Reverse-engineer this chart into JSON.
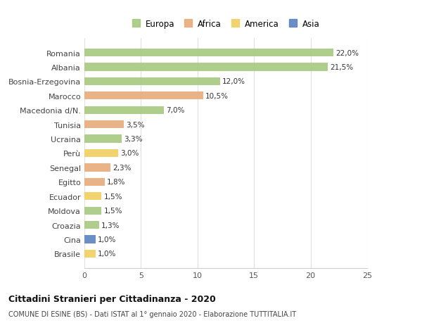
{
  "countries": [
    "Romania",
    "Albania",
    "Bosnia-Erzegovina",
    "Marocco",
    "Macedonia d/N.",
    "Tunisia",
    "Ucraina",
    "Perù",
    "Senegal",
    "Egitto",
    "Ecuador",
    "Moldova",
    "Croazia",
    "Cina",
    "Brasile"
  ],
  "values": [
    22.0,
    21.5,
    12.0,
    10.5,
    7.0,
    3.5,
    3.3,
    3.0,
    2.3,
    1.8,
    1.5,
    1.5,
    1.3,
    1.0,
    1.0
  ],
  "labels": [
    "22,0%",
    "21,5%",
    "12,0%",
    "10,5%",
    "7,0%",
    "3,5%",
    "3,3%",
    "3,0%",
    "2,3%",
    "1,8%",
    "1,5%",
    "1,5%",
    "1,3%",
    "1,0%",
    "1,0%"
  ],
  "colors": [
    "#a8c97f",
    "#a8c97f",
    "#a8c97f",
    "#e8aa7a",
    "#a8c97f",
    "#e8aa7a",
    "#a8c97f",
    "#f0d060",
    "#e8aa7a",
    "#e8aa7a",
    "#f0d060",
    "#a8c97f",
    "#a8c97f",
    "#5b82c0",
    "#f0d060"
  ],
  "legend_labels": [
    "Europa",
    "Africa",
    "America",
    "Asia"
  ],
  "legend_colors": [
    "#a8c97f",
    "#e8aa7a",
    "#f0d060",
    "#5b82c0"
  ],
  "xlim": [
    0,
    25
  ],
  "xticks": [
    0,
    5,
    10,
    15,
    20,
    25
  ],
  "title": "Cittadini Stranieri per Cittadinanza - 2020",
  "subtitle": "COMUNE DI ESINE (BS) - Dati ISTAT al 1° gennaio 2020 - Elaborazione TUTTITALIA.IT",
  "background_color": "#ffffff",
  "grid_color": "#e0e0e0",
  "bar_height": 0.55
}
